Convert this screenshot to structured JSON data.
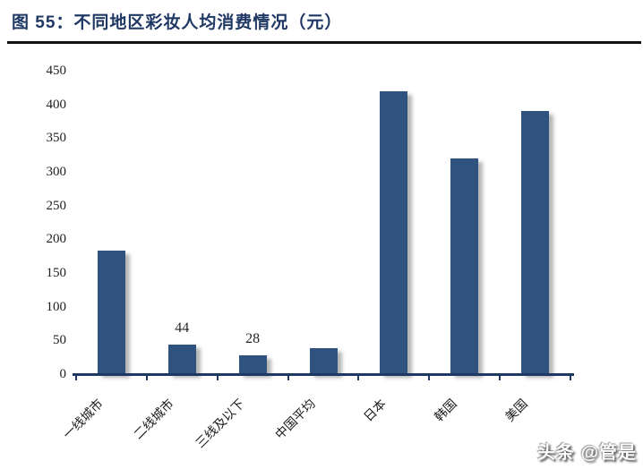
{
  "figure_header": {
    "title": "图 55：不同地区彩妆人均消费情况（元）"
  },
  "chart_data": {
    "type": "bar",
    "title": "不同地区彩妆人均消费情况（元）",
    "categories": [
      "一线城市",
      "二线城市",
      "三线及以下",
      "中国平均",
      "日本",
      "韩国",
      "美国"
    ],
    "values": [
      183,
      44,
      28,
      38,
      420,
      320,
      390
    ],
    "bar_labels": [
      "",
      "44",
      "28",
      "",
      "",
      "",
      ""
    ],
    "xlabel": "",
    "ylabel": "",
    "ylim": [
      0,
      450
    ],
    "ytick_step": 50,
    "yticks": [
      0,
      50,
      100,
      150,
      200,
      250,
      300,
      350,
      400,
      450
    ],
    "grid": false,
    "legend": "none",
    "bar_color": "#2F537E",
    "axis_color": "#1F3864",
    "tick_label_color": "#1f1f1f"
  },
  "colors": {
    "title": "#1F3864",
    "divider": "#121212",
    "bar": "#2F537E",
    "axis": "#1F3864"
  },
  "watermark": {
    "text": "头条 @管是"
  }
}
